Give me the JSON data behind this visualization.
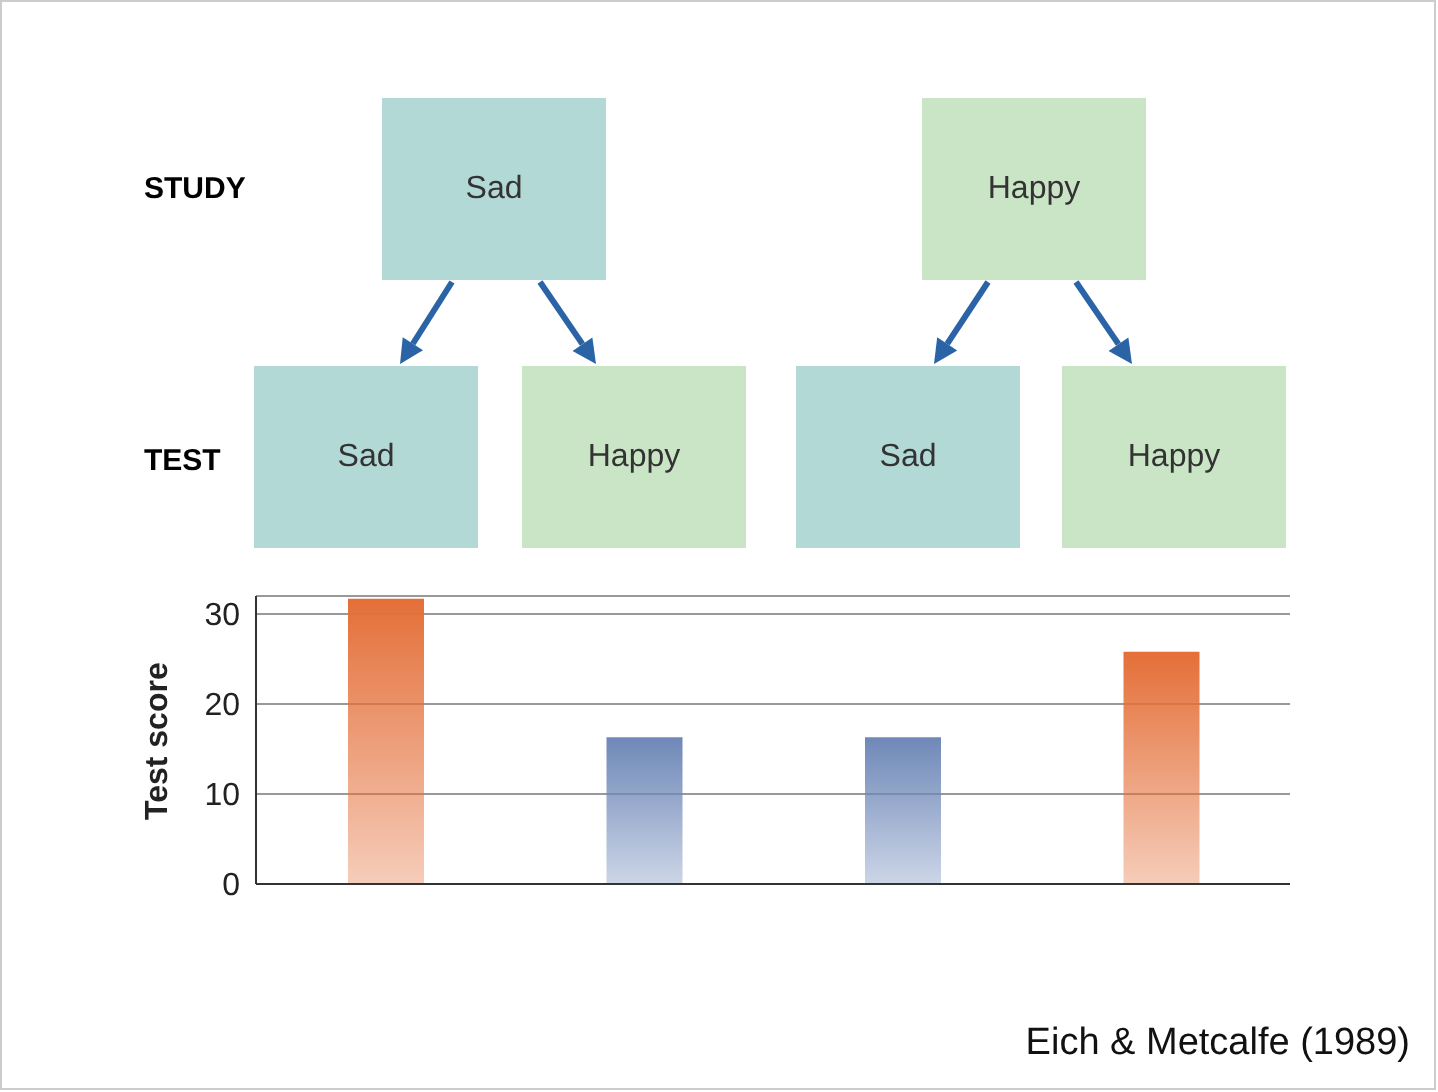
{
  "chart_data": {
    "type": "bar",
    "ylabel": "Test score",
    "categories": [
      null,
      null,
      null,
      null
    ],
    "values": [
      31.7,
      16.3,
      16.3,
      25.8
    ],
    "colors": [
      "#e46f38",
      "#6e88b8",
      "#6e88b8",
      "#e46f38"
    ],
    "ylim": [
      0,
      32
    ],
    "yticks": [
      0,
      10,
      20,
      30
    ],
    "grid": "y",
    "legend": false,
    "annotations": [
      "STUDY",
      "Sad",
      "Happy",
      "TEST",
      "Sad",
      "Happy",
      "Sad",
      "Happy",
      "Eich & Metcalfe (1989)"
    ]
  }
}
